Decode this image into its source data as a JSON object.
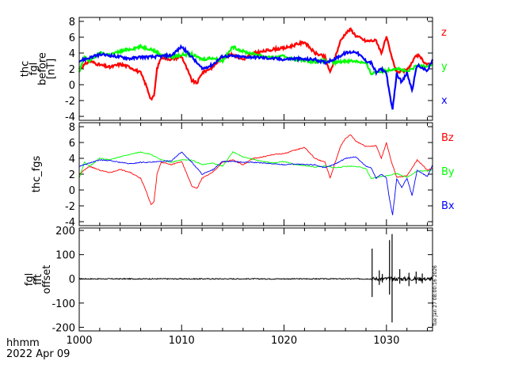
{
  "chart_data": [
    {
      "type": "line",
      "panel": "top",
      "ylabel_lines": [
        "thc",
        "fgl",
        "before",
        "[nT]"
      ],
      "xlim": [
        1000,
        1034.5
      ],
      "ylim": [
        -4.5,
        8.5
      ],
      "yticks": [
        -4,
        -2,
        0,
        2,
        4,
        6,
        8
      ],
      "series": [
        {
          "name": "z",
          "color": "#ff0000",
          "x": [
            1000,
            1001,
            1002,
            1003,
            1004,
            1005,
            1006,
            1006.5,
            1007,
            1007.3,
            1007.6,
            1008,
            1009,
            1010,
            1011,
            1011.5,
            1012,
            1013,
            1014,
            1015,
            1016,
            1017,
            1018,
            1019,
            1020,
            1021,
            1022,
            1023,
            1024,
            1024.5,
            1025,
            1025.5,
            1026,
            1026.5,
            1027,
            1028,
            1029,
            1029.5,
            1030,
            1030.5,
            1031,
            1032,
            1033,
            1034,
            1034.5
          ],
          "values": [
            2,
            3,
            2.5,
            2.2,
            2.6,
            2.2,
            1.5,
            0,
            -1.8,
            -1.5,
            2,
            3.5,
            3.2,
            3.6,
            0.5,
            0.2,
            1.5,
            2.2,
            3.5,
            3.8,
            3.2,
            4,
            4.2,
            4.5,
            4.6,
            5,
            5.4,
            4,
            3.5,
            1.5,
            3.5,
            5.5,
            6.5,
            7,
            6.2,
            5.5,
            5.6,
            4,
            6,
            3.5,
            1.6,
            1.8,
            3.8,
            2.5,
            2.8
          ]
        },
        {
          "name": "y",
          "color": "#00ff00",
          "x": [
            1000,
            1000.5,
            1001,
            1002,
            1003,
            1004,
            1005,
            1006,
            1007,
            1008,
            1009,
            1010,
            1011,
            1012,
            1013,
            1014,
            1015,
            1016,
            1017,
            1018,
            1019,
            1020,
            1021,
            1022,
            1023,
            1024,
            1025,
            1026,
            1027,
            1028,
            1028.5,
            1029,
            1030,
            1031,
            1032,
            1033,
            1034,
            1034.5
          ],
          "values": [
            1.5,
            3.5,
            3,
            4,
            3.8,
            4.2,
            4.5,
            4.8,
            4.5,
            3.8,
            3.5,
            3.8,
            3.8,
            3.2,
            3.4,
            3,
            4.8,
            4.2,
            3.9,
            3.6,
            3.4,
            3.6,
            3.2,
            3.1,
            2.9,
            3,
            2.8,
            3,
            3,
            2.7,
            1.4,
            1.6,
            1.8,
            2.1,
            1.6,
            2.4,
            2.4,
            2.6
          ]
        },
        {
          "name": "x",
          "color": "#0000ff",
          "x": [
            1000,
            1001,
            1002,
            1003,
            1004,
            1005,
            1006,
            1007,
            1008,
            1009,
            1010,
            1011,
            1012,
            1013,
            1014,
            1015,
            1016,
            1017,
            1018,
            1019,
            1020,
            1021,
            1022,
            1023,
            1024,
            1025,
            1026,
            1027,
            1028,
            1028.5,
            1029,
            1029.5,
            1030,
            1030.3,
            1030.6,
            1031,
            1031.5,
            1032,
            1032.5,
            1033,
            1034,
            1034.5
          ],
          "values": [
            3,
            3.4,
            3.8,
            3.7,
            3.5,
            3.3,
            3.5,
            3.5,
            3.6,
            3.7,
            4.8,
            3.5,
            2,
            2.5,
            3.6,
            3.6,
            3.5,
            3.5,
            3.4,
            3.3,
            3.2,
            3.3,
            3.2,
            3.2,
            2.8,
            3.3,
            4,
            4.2,
            3,
            2.8,
            1.5,
            2,
            1.5,
            -1.2,
            -3.2,
            1.4,
            0.3,
            1.5,
            -0.7,
            2.5,
            1.7,
            3.2
          ]
        }
      ]
    },
    {
      "type": "line",
      "panel": "middle",
      "ylabel_lines": [
        "thc_fgs"
      ],
      "xlim": [
        1000,
        1034.5
      ],
      "ylim": [
        -4.5,
        8.5
      ],
      "yticks": [
        -4,
        -2,
        0,
        2,
        4,
        6,
        8
      ],
      "series": [
        {
          "name": "Bz",
          "color": "#ff0000",
          "x": [
            1000,
            1001,
            1002,
            1003,
            1004,
            1005,
            1006,
            1006.5,
            1007,
            1007.3,
            1007.6,
            1008,
            1009,
            1010,
            1011,
            1011.5,
            1012,
            1013,
            1014,
            1015,
            1016,
            1017,
            1018,
            1019,
            1020,
            1021,
            1022,
            1023,
            1024,
            1024.5,
            1025,
            1025.5,
            1026,
            1026.5,
            1027,
            1028,
            1029,
            1029.5,
            1030,
            1030.5,
            1031,
            1032,
            1033,
            1034,
            1034.5
          ],
          "values": [
            2,
            3,
            2.5,
            2.2,
            2.6,
            2.2,
            1.5,
            0,
            -1.8,
            -1.5,
            2,
            3.5,
            3.2,
            3.6,
            0.5,
            0.2,
            1.5,
            2.2,
            3.5,
            3.8,
            3.2,
            4,
            4.2,
            4.5,
            4.6,
            5,
            5.4,
            4,
            3.5,
            1.5,
            3.5,
            5.5,
            6.5,
            7,
            6.2,
            5.5,
            5.6,
            4,
            6,
            3.5,
            1.6,
            1.8,
            3.8,
            2.5,
            2.8
          ]
        },
        {
          "name": "By",
          "color": "#00ff00",
          "x": [
            1000,
            1000.5,
            1001,
            1002,
            1003,
            1004,
            1005,
            1006,
            1007,
            1008,
            1009,
            1010,
            1011,
            1012,
            1013,
            1014,
            1015,
            1016,
            1017,
            1018,
            1019,
            1020,
            1021,
            1022,
            1023,
            1024,
            1025,
            1026,
            1027,
            1028,
            1028.5,
            1029,
            1030,
            1031,
            1032,
            1033,
            1034,
            1034.5
          ],
          "values": [
            1.5,
            3.5,
            3,
            4,
            3.8,
            4.2,
            4.5,
            4.8,
            4.5,
            3.8,
            3.5,
            3.8,
            3.8,
            3.2,
            3.4,
            3,
            4.8,
            4.2,
            3.9,
            3.6,
            3.4,
            3.6,
            3.2,
            3.1,
            2.9,
            3,
            2.8,
            3,
            3,
            2.7,
            1.4,
            1.6,
            1.8,
            2.1,
            1.6,
            2.4,
            2.4,
            2.6
          ]
        },
        {
          "name": "Bx",
          "color": "#0000ff",
          "x": [
            1000,
            1001,
            1002,
            1003,
            1004,
            1005,
            1006,
            1007,
            1008,
            1009,
            1010,
            1011,
            1012,
            1013,
            1014,
            1015,
            1016,
            1017,
            1018,
            1019,
            1020,
            1021,
            1022,
            1023,
            1024,
            1025,
            1026,
            1027,
            1028,
            1028.5,
            1029,
            1029.5,
            1030,
            1030.3,
            1030.6,
            1031,
            1031.5,
            1032,
            1032.5,
            1033,
            1034,
            1034.5
          ],
          "values": [
            3,
            3.4,
            3.8,
            3.7,
            3.5,
            3.3,
            3.5,
            3.5,
            3.6,
            3.7,
            4.8,
            3.5,
            2,
            2.5,
            3.6,
            3.6,
            3.5,
            3.5,
            3.4,
            3.3,
            3.2,
            3.3,
            3.2,
            3.2,
            2.8,
            3.3,
            4,
            4.2,
            3,
            2.8,
            1.5,
            2,
            1.5,
            -1.2,
            -3.2,
            1.4,
            0.3,
            1.5,
            -0.7,
            2.5,
            1.7,
            3.2
          ]
        }
      ]
    },
    {
      "type": "line",
      "panel": "bottom",
      "ylabel_lines": [
        "fgl",
        "fft",
        "offset"
      ],
      "xlim": [
        1000,
        1034.5
      ],
      "ylim": [
        -215,
        210
      ],
      "yticks": [
        -200,
        -100,
        0,
        100,
        200
      ],
      "xticks": [
        1000,
        1010,
        1020,
        1030
      ],
      "series": [
        {
          "name": "offset",
          "color": "#000000",
          "noise_floor": 2,
          "spikes": [
            {
              "x": 1028.6,
              "values": [
                125,
                -75
              ]
            },
            {
              "x": 1029.3,
              "values": [
                35,
                -25
              ]
            },
            {
              "x": 1029.6,
              "values": [
                20,
                -15
              ]
            },
            {
              "x": 1030.3,
              "values": [
                160,
                -65
              ]
            },
            {
              "x": 1030.55,
              "values": [
                185,
                -180
              ]
            },
            {
              "x": 1031.3,
              "values": [
                40,
                -20
              ]
            },
            {
              "x": 1032.2,
              "values": [
                25,
                -30
              ]
            },
            {
              "x": 1032.9,
              "values": [
                30,
                -20
              ]
            },
            {
              "x": 1033.5,
              "values": [
                22,
                -18
              ]
            }
          ]
        }
      ]
    }
  ],
  "xaxis": {
    "label": "hhmm",
    "date": "2022 Apr 09"
  },
  "timestamp": "Tue Jan 27 08:00:16 2026"
}
